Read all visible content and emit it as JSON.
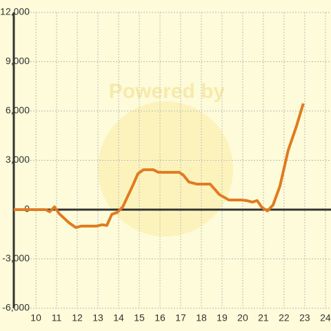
{
  "chart_data": {
    "type": "line",
    "watermark": "Powered by",
    "x": [
      8.93,
      10.47,
      10.67,
      10.9,
      11.13,
      11.6,
      11.93,
      12.2,
      12.93,
      13.2,
      13.43,
      13.67,
      13.93,
      14.2,
      14.67,
      14.93,
      15.2,
      15.67,
      15.93,
      16.93,
      17.13,
      17.4,
      17.8,
      18.43,
      18.87,
      19.33,
      19.87,
      20.2,
      20.47,
      20.7,
      20.93,
      21.2,
      21.47,
      21.8,
      22.2,
      22.6,
      22.93
    ],
    "series": [
      {
        "color": "#e07b20",
        "values": [
          0,
          0,
          -130,
          170,
          -250,
          -800,
          -1090,
          -1000,
          -1000,
          -920,
          -960,
          -290,
          -170,
          170,
          1430,
          2180,
          2430,
          2430,
          2270,
          2270,
          2100,
          1680,
          1550,
          1550,
          920,
          590,
          590,
          550,
          460,
          550,
          130,
          -80,
          290,
          1430,
          3610,
          5080,
          6460
        ]
      }
    ],
    "xlim": [
      8.93,
      24.27
    ],
    "xticks": [
      10,
      11,
      12,
      13,
      14,
      15,
      16,
      17,
      18,
      19,
      20,
      21,
      22,
      23,
      24
    ],
    "ylim": [
      -6000,
      12000
    ],
    "yticks": [
      {
        "value": -6000,
        "label": "-6,000"
      },
      {
        "value": -3000,
        "label": "-3,000"
      },
      0,
      {
        "value": 3000,
        "label": "3,000"
      },
      {
        "value": 6000,
        "label": "6,000"
      },
      {
        "value": 9000,
        "label": "9,000"
      },
      {
        "value": 12000,
        "label": "12,000"
      }
    ],
    "grid": true
  }
}
